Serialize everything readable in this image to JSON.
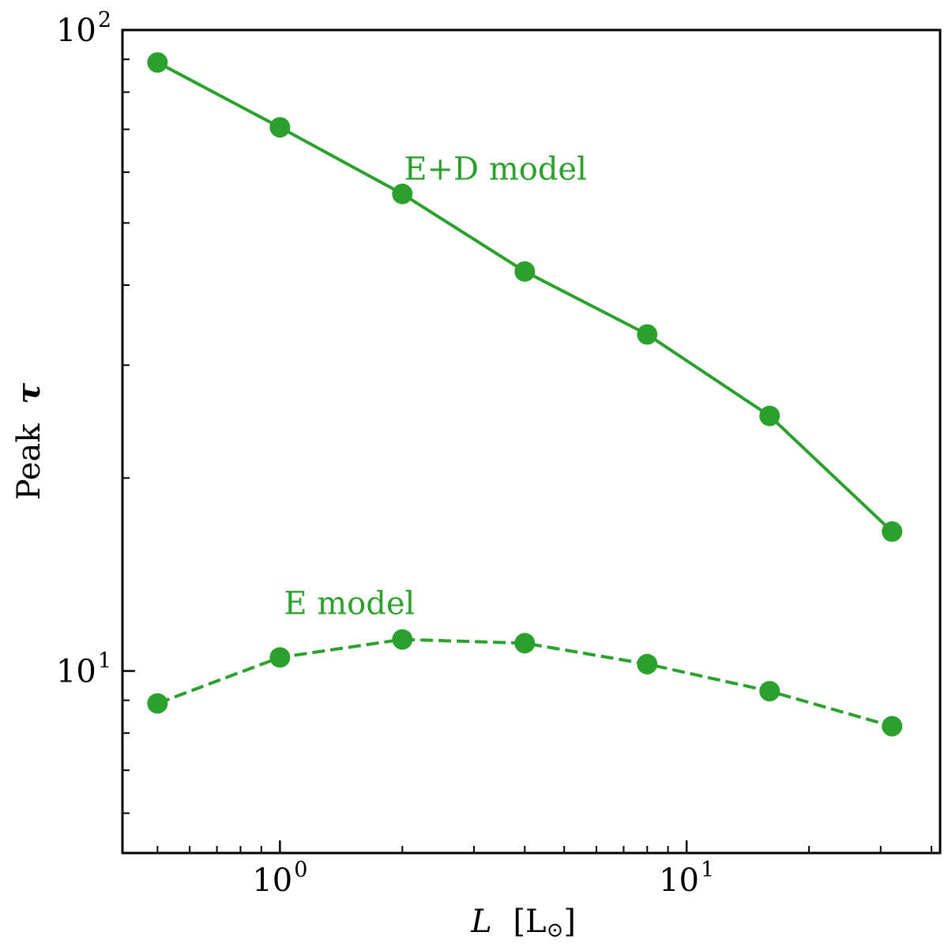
{
  "chart_data": {
    "type": "line",
    "xscale": "log",
    "yscale": "log",
    "xlabel": {
      "main": "L",
      "unit": "[L",
      "unit_symbol": "⊙",
      "unit_close": "]"
    },
    "ylabel": {
      "main": "Peak",
      "symbol": "τ"
    },
    "xlim": [
      0.41,
      42
    ],
    "ylim": [
      5.2,
      100
    ],
    "x_ticks": [
      {
        "base": "10",
        "exp": "0",
        "value": 1
      },
      {
        "base": "10",
        "exp": "1",
        "value": 10
      }
    ],
    "y_ticks": [
      {
        "base": "10",
        "exp": "1",
        "value": 10
      },
      {
        "base": "10",
        "exp": "2",
        "value": 100
      }
    ],
    "grid": false,
    "legend": "none",
    "color": "#2ca02c",
    "series": [
      {
        "name": "E+D model",
        "line_style": "solid",
        "x": [
          0.5,
          1,
          2,
          4,
          8,
          16,
          32
        ],
        "y": [
          89,
          70.5,
          55.5,
          42,
          33.5,
          25,
          16.5
        ]
      },
      {
        "name": "E model",
        "line_style": "dashed",
        "x": [
          0.5,
          1,
          2,
          4,
          8,
          16,
          32
        ],
        "y": [
          8.9,
          10.5,
          11.2,
          11.05,
          10.25,
          9.3,
          8.2
        ]
      }
    ],
    "annotations": [
      {
        "text": "E+D model",
        "series": 0
      },
      {
        "text": "E model",
        "series": 1
      }
    ]
  }
}
